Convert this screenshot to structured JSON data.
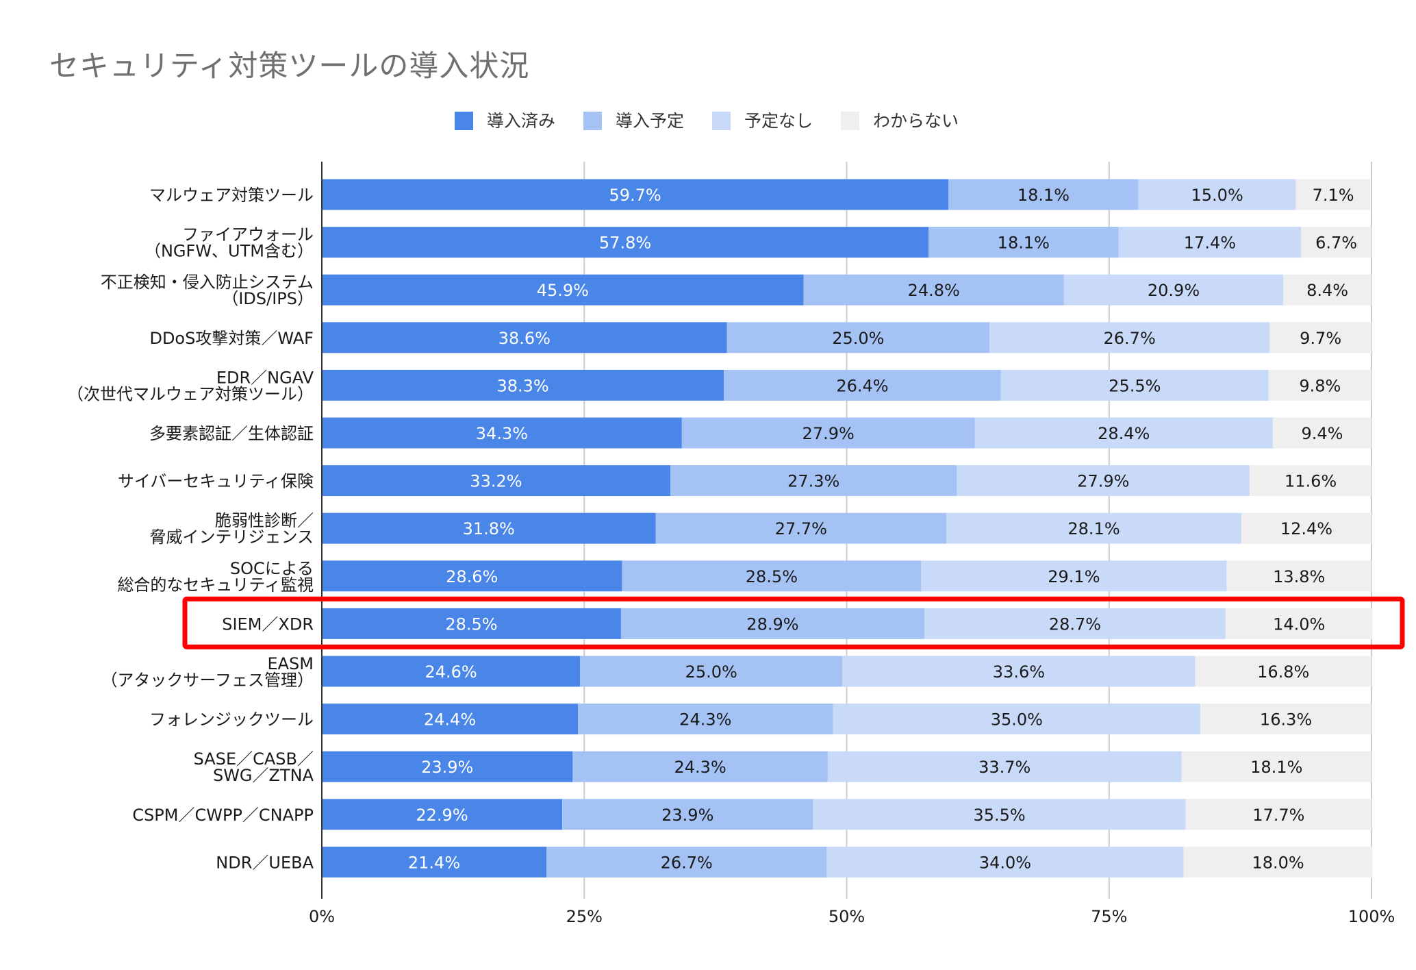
{
  "chart_data": {
    "type": "bar",
    "orientation": "horizontal",
    "stacked": true,
    "title": "セキュリティ対策ツールの導入状況",
    "categories": [
      "マルウェア対策ツール",
      "ファイアウォール\n（NGFW、UTM含む）",
      "不正検知・侵入防止システム\n（IDS/IPS）",
      "DDoS攻撃対策／WAF",
      "EDR／NGAV\n（次世代マルウェア対策ツール）",
      "多要素認証／生体認証",
      "サイバーセキュリティ保険",
      "脆弱性診断／\n脅威インテリジェンス",
      "SOCによる\n総合的なセキュリティ監視",
      "SIEM／XDR",
      "EASM\n（アタックサーフェス管理）",
      "フォレンジックツール",
      "SASE／CASB／\nSWG／ZTNA",
      "CSPM／CWPP／CNAPP",
      "NDR／UEBA"
    ],
    "series": [
      {
        "name": "導入済み",
        "color": "#4a86e8",
        "label_color": "#ffffff",
        "values": [
          59.7,
          57.8,
          45.9,
          38.6,
          38.3,
          34.3,
          33.2,
          31.8,
          28.6,
          28.5,
          24.6,
          24.4,
          23.9,
          22.9,
          21.4
        ]
      },
      {
        "name": "導入予定",
        "color": "#a4c2f4",
        "label_color": "#1a1a1a",
        "values": [
          18.1,
          18.1,
          24.8,
          25.0,
          26.4,
          27.9,
          27.3,
          27.7,
          28.5,
          28.9,
          25.0,
          24.3,
          24.3,
          23.9,
          26.7
        ]
      },
      {
        "name": "予定なし",
        "color": "#c9daf8",
        "label_color": "#1a1a1a",
        "values": [
          15.0,
          17.4,
          20.9,
          26.7,
          25.5,
          28.4,
          27.9,
          28.1,
          29.1,
          28.7,
          33.6,
          35.0,
          33.7,
          35.5,
          34.0
        ]
      },
      {
        "name": "わからない",
        "color": "#efefef",
        "label_color": "#1a1a1a",
        "values": [
          7.1,
          6.7,
          8.4,
          9.7,
          9.8,
          9.4,
          11.6,
          12.4,
          13.8,
          14.0,
          16.8,
          16.3,
          18.1,
          17.7,
          18.0
        ]
      }
    ],
    "value_suffix": "%",
    "xlim": [
      0,
      100
    ],
    "x_ticks": [
      "0%",
      "25%",
      "50%",
      "75%",
      "100%"
    ],
    "grid": true,
    "legend_position": "top-center",
    "highlight": {
      "category_index": 9,
      "color": "#ff0000"
    }
  }
}
